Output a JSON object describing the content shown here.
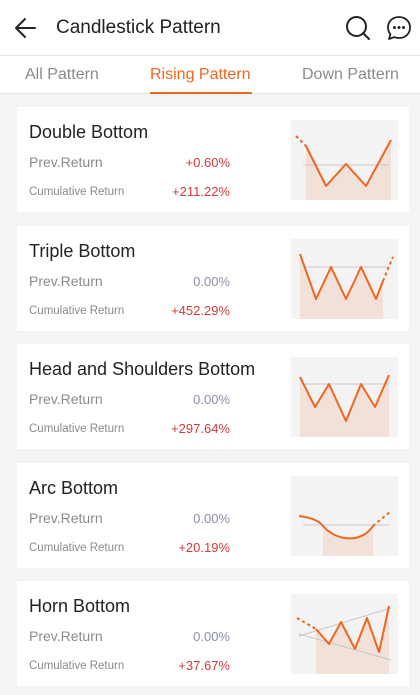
{
  "header": {
    "title": "Candlestick Pattern",
    "back_icon": "arrow-left-icon",
    "search_icon": "search-icon",
    "chat_icon": "chat-bubble-icon"
  },
  "tabs": [
    {
      "label": "All Pattern",
      "active": false
    },
    {
      "label": "Rising Pattern",
      "active": true
    },
    {
      "label": "Down Pattern",
      "active": false
    }
  ],
  "colors": {
    "accent": "#f0661e",
    "positive": "#d33a3a",
    "neutral": "#8b8fa8"
  },
  "patterns": [
    {
      "name": "Double Bottom",
      "prev_label": "Prev.Return",
      "prev_value": "+0.60%",
      "cum_label": "Cumulative Return",
      "cum_value": "+211.22%"
    },
    {
      "name": "Triple Bottom",
      "prev_label": "Prev.Return",
      "prev_value": "0.00%",
      "cum_label": "Cumulative Return",
      "cum_value": "+452.29%"
    },
    {
      "name": "Head and Shoulders Bottom",
      "prev_label": "Prev.Return",
      "prev_value": "0.00%",
      "cum_label": "Cumulative Return",
      "cum_value": "+297.64%"
    },
    {
      "name": "Arc Bottom",
      "prev_label": "Prev.Return",
      "prev_value": "0.00%",
      "cum_label": "Cumulative Return",
      "cum_value": "+20.19%"
    },
    {
      "name": "Horn Bottom",
      "prev_label": "Prev.Return",
      "prev_value": "0.00%",
      "cum_label": "Cumulative Return",
      "cum_value": "+37.67%"
    }
  ]
}
